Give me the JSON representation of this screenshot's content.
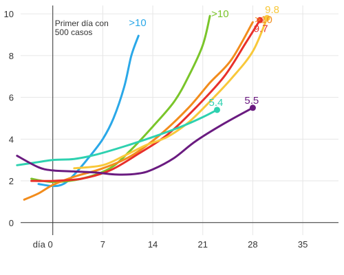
{
  "chart_data": {
    "type": "line",
    "xlim": [
      -4.5,
      40
    ],
    "ylim": [
      -0.6,
      10.4
    ],
    "x_ticks": [
      {
        "value": 0,
        "label": "día 0"
      },
      {
        "value": 7,
        "label": "7"
      },
      {
        "value": 14,
        "label": "14"
      },
      {
        "value": 21,
        "label": "21"
      },
      {
        "value": 28,
        "label": "28"
      },
      {
        "value": 35,
        "label": "35"
      }
    ],
    "y_ticks": [
      {
        "value": 0,
        "label": "0"
      },
      {
        "value": 2,
        "label": "2"
      },
      {
        "value": 4,
        "label": "4"
      },
      {
        "value": 6,
        "label": "6"
      },
      {
        "value": 8,
        "label": "8"
      },
      {
        "value": 10,
        "label": "10"
      }
    ],
    "grid": true,
    "annotation": {
      "x": 0,
      "text_lines": [
        "Primer día con",
        "500 casos"
      ]
    },
    "series": [
      {
        "color": "#2aa8e8",
        "end_label": ">10",
        "end_marker": false,
        "points": [
          [
            -2,
            1.85
          ],
          [
            0,
            1.75
          ],
          [
            1.5,
            1.85
          ],
          [
            3,
            2.3
          ],
          [
            5,
            3.1
          ],
          [
            7,
            4.0
          ],
          [
            8.5,
            5.0
          ],
          [
            10,
            6.5
          ],
          [
            11,
            8.0
          ],
          [
            12,
            8.95
          ]
        ]
      },
      {
        "color": "#7ac52a",
        "end_label": ">10",
        "end_marker": false,
        "points": [
          [
            -3,
            2.1
          ],
          [
            0,
            1.95
          ],
          [
            4,
            2.1
          ],
          [
            8,
            2.6
          ],
          [
            11,
            3.5
          ],
          [
            14,
            4.6
          ],
          [
            17,
            5.8
          ],
          [
            19,
            7.0
          ],
          [
            21,
            8.5
          ],
          [
            22,
            9.9
          ]
        ]
      },
      {
        "color": "#f28c1c",
        "end_label": ">10",
        "end_marker": false,
        "points": [
          [
            -4,
            1.1
          ],
          [
            -2,
            1.4
          ],
          [
            0,
            1.8
          ],
          [
            3,
            2.2
          ],
          [
            7,
            2.6
          ],
          [
            11,
            3.2
          ],
          [
            15,
            4.2
          ],
          [
            19,
            5.5
          ],
          [
            22,
            6.7
          ],
          [
            25,
            7.8
          ],
          [
            28,
            9.6
          ]
        ]
      },
      {
        "color": "#e8302a",
        "end_label": "9.7",
        "end_marker": true,
        "points": [
          [
            -3,
            2.0
          ],
          [
            0,
            2.0
          ],
          [
            4,
            2.1
          ],
          [
            8,
            2.5
          ],
          [
            12,
            3.3
          ],
          [
            16,
            4.2
          ],
          [
            20,
            5.5
          ],
          [
            24,
            7.0
          ],
          [
            27,
            8.6
          ],
          [
            29,
            9.7
          ]
        ]
      },
      {
        "color": "#f8c83a",
        "end_label": "9.8",
        "end_marker": true,
        "points": [
          [
            3,
            2.6
          ],
          [
            7,
            2.75
          ],
          [
            10,
            3.2
          ],
          [
            13,
            3.7
          ],
          [
            16,
            4.1
          ],
          [
            19,
            4.8
          ],
          [
            22,
            5.8
          ],
          [
            25,
            6.9
          ],
          [
            28,
            8.2
          ],
          [
            30,
            9.8
          ]
        ]
      },
      {
        "color": "#2ed1b0",
        "end_label": "5.4",
        "end_marker": true,
        "points": [
          [
            -5,
            2.75
          ],
          [
            -2,
            2.9
          ],
          [
            0,
            3.0
          ],
          [
            3,
            3.05
          ],
          [
            6,
            3.25
          ],
          [
            10,
            3.65
          ],
          [
            14,
            4.1
          ],
          [
            18,
            4.6
          ],
          [
            21,
            5.05
          ],
          [
            23,
            5.4
          ]
        ]
      },
      {
        "color": "#6a1b80",
        "end_label": "5.5",
        "end_marker": true,
        "points": [
          [
            -5,
            3.2
          ],
          [
            -2,
            2.65
          ],
          [
            0,
            2.5
          ],
          [
            3,
            2.45
          ],
          [
            6,
            2.4
          ],
          [
            9,
            2.3
          ],
          [
            12,
            2.35
          ],
          [
            14,
            2.55
          ],
          [
            17,
            3.1
          ],
          [
            20,
            3.9
          ],
          [
            24,
            4.75
          ],
          [
            28,
            5.5
          ]
        ]
      }
    ]
  }
}
